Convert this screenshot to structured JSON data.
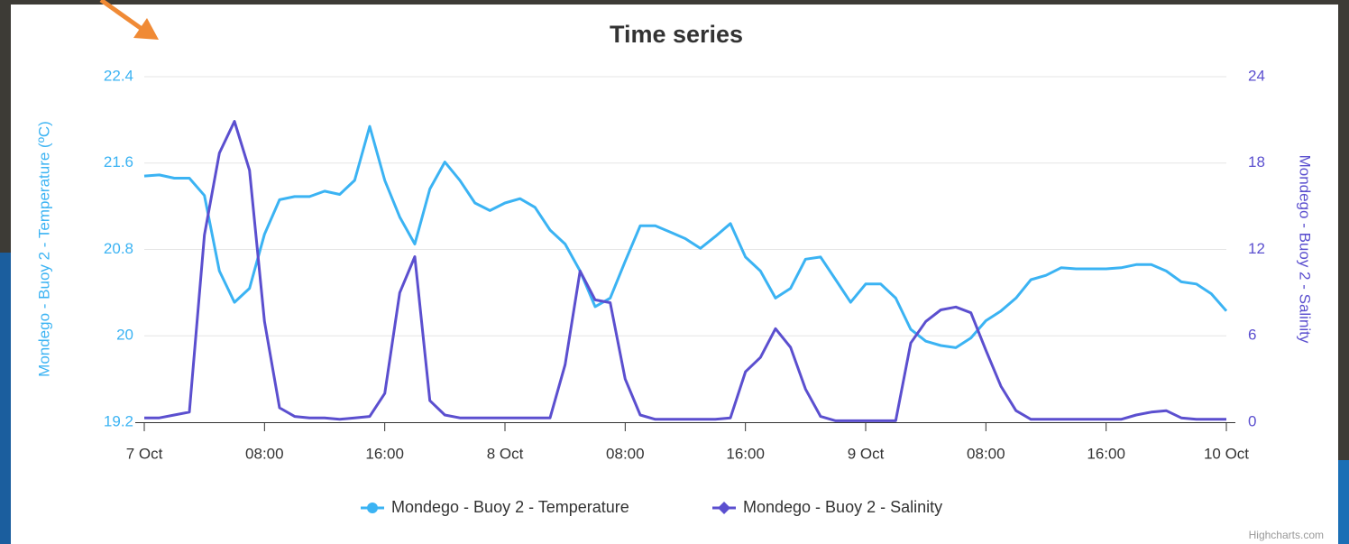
{
  "chart_data": {
    "type": "line",
    "title": "Time series",
    "credits": "Highcharts.com",
    "ylabel": "Mondego - Buoy 2 - Temperature (ºC)",
    "y2label": "Mondego - Buoy 2 - Salinity",
    "x": [
      0,
      1,
      2,
      3,
      4,
      5,
      6,
      7,
      8,
      9,
      10,
      11,
      12,
      13,
      14,
      15,
      16,
      17,
      18,
      19,
      20,
      21,
      22,
      23,
      24,
      25,
      26,
      27,
      28,
      29,
      30,
      31,
      32,
      33,
      34,
      35,
      36,
      37,
      38,
      39,
      40,
      41,
      42,
      43,
      44,
      45,
      46,
      47,
      48,
      49,
      50,
      51,
      52,
      53,
      54,
      55,
      56,
      57,
      58,
      59,
      60,
      61,
      62,
      63,
      64,
      65,
      66,
      67,
      68,
      69,
      70,
      71,
      72
    ],
    "xlim": [
      0,
      72
    ],
    "xticks": [
      {
        "value": 0,
        "label": "7 Oct"
      },
      {
        "value": 8,
        "label": "08:00"
      },
      {
        "value": 16,
        "label": "16:00"
      },
      {
        "value": 24,
        "label": "8 Oct"
      },
      {
        "value": 32,
        "label": "08:00"
      },
      {
        "value": 40,
        "label": "16:00"
      },
      {
        "value": 48,
        "label": "9 Oct"
      },
      {
        "value": 56,
        "label": "08:00"
      },
      {
        "value": 64,
        "label": "16:00"
      },
      {
        "value": 72,
        "label": "10 Oct"
      }
    ],
    "ylim": [
      19.2,
      22.4
    ],
    "yticks": [
      19.2,
      20,
      20.8,
      21.6,
      22.4
    ],
    "y2lim": [
      0,
      24
    ],
    "y2ticks": [
      0,
      6,
      12,
      18,
      24
    ],
    "grid": true,
    "legend": "bottom",
    "series": [
      {
        "name": "Mondego - Buoy 2 - Temperature",
        "color": "#3bb3f3",
        "values": [
          21.48,
          21.49,
          21.46,
          21.46,
          21.3,
          20.6,
          20.31,
          20.44,
          20.94,
          21.26,
          21.29,
          21.29,
          21.34,
          21.31,
          21.44,
          21.94,
          21.44,
          21.1,
          20.85,
          21.36,
          21.61,
          21.44,
          21.23,
          21.16,
          21.23,
          21.27,
          21.19,
          20.98,
          20.85,
          20.6,
          20.27,
          20.35,
          20.69,
          21.02,
          21.02,
          20.96,
          20.9,
          20.81,
          20.92,
          21.04,
          20.73,
          20.6,
          20.35,
          20.44,
          20.71,
          20.73,
          20.52,
          20.31,
          20.48,
          20.48,
          20.35,
          20.06,
          19.95,
          19.91,
          19.89,
          19.98,
          20.14,
          20.23,
          20.35,
          20.52,
          20.56,
          20.63,
          20.62,
          20.62,
          20.62,
          20.63,
          20.66,
          20.66,
          20.6,
          20.5,
          20.48,
          20.39,
          20.23
        ]
      },
      {
        "name": "Mondego - Buoy 2 - Salinity",
        "color": "#5b4fcf",
        "axis": "y2",
        "values": [
          0.3,
          0.3,
          0.5,
          0.7,
          13,
          18.7,
          20.9,
          17.5,
          7,
          1,
          0.4,
          0.3,
          0.3,
          0.2,
          0.3,
          0.4,
          2,
          9,
          11.5,
          1.5,
          0.5,
          0.3,
          0.3,
          0.3,
          0.3,
          0.3,
          0.3,
          0.3,
          4,
          10.5,
          8.5,
          8.3,
          3,
          0.5,
          0.2,
          0.2,
          0.2,
          0.2,
          0.2,
          0.3,
          3.5,
          4.5,
          6.5,
          5.2,
          2.3,
          0.4,
          0.1,
          0.1,
          0.1,
          0.1,
          0.1,
          5.5,
          7,
          7.8,
          8,
          7.6,
          5,
          2.5,
          0.8,
          0.2,
          0.2,
          0.2,
          0.2,
          0.2,
          0.2,
          0.2,
          0.5,
          0.7,
          0.8,
          0.3,
          0.2,
          0.2,
          0.2
        ]
      }
    ]
  }
}
